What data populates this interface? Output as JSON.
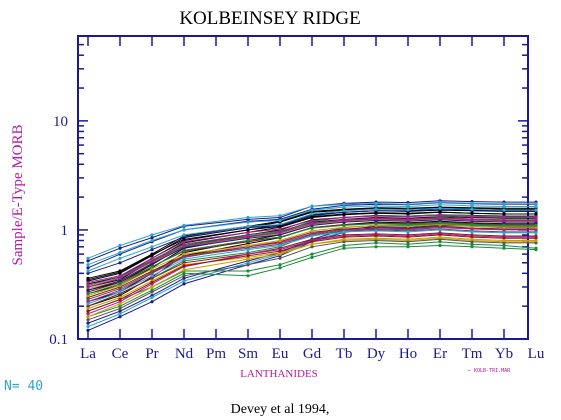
{
  "chart_data": {
    "type": "line",
    "title": "KOLBEINSEY RIDGE",
    "ylabel": "Sample/E-Type MORB",
    "xlabel": "LANTHANIDES",
    "yscale": "log",
    "ylim": [
      0.1,
      60
    ],
    "yticks": [
      {
        "value": 0.1,
        "label": "0.1"
      },
      {
        "value": 1,
        "label": "1"
      },
      {
        "value": 10,
        "label": "10"
      }
    ],
    "categories": [
      "La",
      "Ce",
      "Pr",
      "Nd",
      "Pm",
      "Sm",
      "Eu",
      "Gd",
      "Tb",
      "Dy",
      "Ho",
      "Er",
      "Tm",
      "Yb",
      "Lu"
    ],
    "legend_note": "← KOLB-TRI.MAR",
    "count_label": "N= 40",
    "footer": "Devey et al 1994,",
    "colors": {
      "axis": "#1a1a8c",
      "title": "#000000",
      "ylabel": "#b5179e",
      "xlabel": "#b5179e",
      "count": "#2ea6c8"
    },
    "series": [
      {
        "color": "#000000",
        "values": [
          0.34,
          0.4,
          0.58,
          0.85,
          null,
          1.05,
          1.18,
          1.45,
          1.52,
          1.58,
          1.55,
          1.6,
          1.58,
          1.55,
          1.55
        ]
      },
      {
        "color": "#000000",
        "values": [
          0.32,
          0.37,
          0.55,
          0.8,
          null,
          1.0,
          1.12,
          1.38,
          1.45,
          1.5,
          1.48,
          1.52,
          1.5,
          1.48,
          1.48
        ]
      },
      {
        "color": "#000000",
        "values": [
          0.3,
          0.35,
          0.52,
          0.76,
          null,
          0.95,
          1.06,
          1.3,
          1.38,
          1.42,
          1.4,
          1.45,
          1.42,
          1.4,
          1.4
        ]
      },
      {
        "color": "#000000",
        "values": [
          0.28,
          0.33,
          0.48,
          0.72,
          null,
          0.9,
          1.0,
          1.24,
          1.3,
          1.36,
          1.34,
          1.38,
          1.36,
          1.34,
          1.34
        ]
      },
      {
        "color": "#000000",
        "values": [
          0.26,
          0.31,
          0.45,
          0.68,
          null,
          0.86,
          0.96,
          1.18,
          1.25,
          1.3,
          1.28,
          1.32,
          1.3,
          1.28,
          1.28
        ]
      },
      {
        "color": "#000000",
        "values": [
          0.22,
          0.27,
          0.4,
          0.62,
          null,
          0.8,
          0.9,
          1.12,
          1.2,
          1.25,
          1.22,
          1.26,
          1.22,
          1.2,
          1.2
        ]
      },
      {
        "color": "#000000",
        "values": [
          0.2,
          0.25,
          0.37,
          0.58,
          null,
          0.75,
          0.85,
          1.05,
          1.12,
          1.18,
          1.16,
          1.2,
          1.16,
          1.14,
          1.14
        ]
      },
      {
        "color": "#000000",
        "values": [
          0.36,
          0.42,
          0.6,
          0.88,
          null,
          1.08,
          1.2,
          1.48,
          1.55,
          1.6,
          1.58,
          1.62,
          1.6,
          1.58,
          1.58
        ]
      },
      {
        "color": "#1a1a8c",
        "values": [
          0.52,
          0.68,
          0.85,
          1.08,
          null,
          1.25,
          1.3,
          1.65,
          1.75,
          1.8,
          1.78,
          1.85,
          1.82,
          1.8,
          1.8
        ]
      },
      {
        "color": "#1a1a8c",
        "values": [
          0.45,
          0.6,
          0.78,
          1.0,
          null,
          1.2,
          1.25,
          1.55,
          1.68,
          1.72,
          1.7,
          1.78,
          1.74,
          1.72,
          1.72
        ]
      },
      {
        "color": "#1a1a8c",
        "values": [
          0.4,
          0.5,
          0.66,
          0.86,
          null,
          1.05,
          1.1,
          1.35,
          1.45,
          1.5,
          1.5,
          1.56,
          1.52,
          1.5,
          1.5
        ]
      },
      {
        "color": "#1a1a8c",
        "values": [
          0.12,
          0.16,
          0.22,
          0.32,
          null,
          0.48,
          0.58,
          0.78,
          0.95,
          1.05,
          1.05,
          1.1,
          1.08,
          1.05,
          1.05
        ]
      },
      {
        "color": "#1a1a8c",
        "values": [
          0.14,
          0.18,
          0.25,
          0.36,
          null,
          0.52,
          0.62,
          0.82,
          1.0,
          1.08,
          1.08,
          1.12,
          1.1,
          1.08,
          1.08
        ]
      },
      {
        "color": "#2ea6c8",
        "values": [
          0.55,
          0.72,
          0.9,
          1.1,
          null,
          1.3,
          1.35,
          1.65,
          1.72,
          1.75,
          1.72,
          1.8,
          1.76,
          1.74,
          1.74
        ]
      },
      {
        "color": "#2ea6c8",
        "values": [
          0.48,
          0.62,
          0.8,
          1.0,
          null,
          1.18,
          1.22,
          1.52,
          1.62,
          1.66,
          1.64,
          1.7,
          1.66,
          1.64,
          1.64
        ]
      },
      {
        "color": "#2ea6c8",
        "values": [
          0.42,
          0.55,
          0.7,
          0.9,
          null,
          1.08,
          1.12,
          1.4,
          1.5,
          1.55,
          1.53,
          1.58,
          1.55,
          1.52,
          1.52
        ]
      },
      {
        "color": "#2ea6c8",
        "values": [
          0.13,
          0.17,
          0.24,
          0.34,
          null,
          0.5,
          0.6,
          0.8,
          0.96,
          1.02,
          1.02,
          1.06,
          1.04,
          1.02,
          1.02
        ]
      },
      {
        "color": "#1a8c3a",
        "values": [
          0.18,
          0.23,
          0.3,
          0.42,
          null,
          0.42,
          0.48,
          0.6,
          0.72,
          0.76,
          0.74,
          0.78,
          0.74,
          0.72,
          0.68
        ]
      },
      {
        "color": "#1a8c3a",
        "values": [
          0.16,
          0.2,
          0.28,
          0.4,
          null,
          0.38,
          0.45,
          0.56,
          0.68,
          0.7,
          0.7,
          0.72,
          0.7,
          0.68,
          0.66
        ]
      },
      {
        "color": "#1a8c3a",
        "values": [
          0.2,
          0.26,
          0.36,
          0.52,
          null,
          0.62,
          0.7,
          0.92,
          1.05,
          1.1,
          1.1,
          1.14,
          1.1,
          1.08,
          1.08
        ]
      },
      {
        "color": "#1a8c3a",
        "values": [
          0.3,
          0.36,
          0.52,
          0.72,
          null,
          0.88,
          0.96,
          1.2,
          1.3,
          1.35,
          1.34,
          1.38,
          1.35,
          1.32,
          1.32
        ]
      },
      {
        "color": "#8b1a1a",
        "values": [
          0.2,
          0.26,
          0.36,
          0.5,
          null,
          0.6,
          0.68,
          0.82,
          0.9,
          0.92,
          0.9,
          0.94,
          0.9,
          0.88,
          0.88
        ]
      },
      {
        "color": "#8b1a1a",
        "values": [
          0.24,
          0.3,
          0.42,
          0.58,
          null,
          0.7,
          0.78,
          0.95,
          1.02,
          1.05,
          1.03,
          1.08,
          1.04,
          1.02,
          1.02
        ]
      },
      {
        "color": "#8b1a1a",
        "values": [
          0.27,
          0.33,
          0.46,
          0.64,
          null,
          0.78,
          0.86,
          1.05,
          1.12,
          1.15,
          1.14,
          1.18,
          1.14,
          1.12,
          1.12
        ]
      },
      {
        "color": "#b5179e",
        "values": [
          0.17,
          0.22,
          0.32,
          0.46,
          null,
          0.6,
          0.66,
          0.8,
          0.88,
          0.9,
          0.88,
          0.92,
          0.88,
          0.86,
          0.86
        ]
      },
      {
        "color": "#b5179e",
        "values": [
          0.22,
          0.28,
          0.4,
          0.56,
          null,
          0.7,
          0.76,
          0.92,
          1.0,
          1.02,
          1.0,
          1.05,
          1.02,
          1.0,
          1.0
        ]
      },
      {
        "color": "#b5179e",
        "values": [
          0.33,
          0.38,
          0.55,
          0.78,
          null,
          0.95,
          1.02,
          1.22,
          1.3,
          1.34,
          1.32,
          1.36,
          1.32,
          1.3,
          1.3
        ]
      },
      {
        "color": "#c8a000",
        "values": [
          0.19,
          0.24,
          0.34,
          0.48,
          null,
          0.56,
          0.62,
          0.74,
          0.8,
          0.82,
          0.8,
          0.84,
          0.8,
          0.78,
          0.78
        ]
      },
      {
        "color": "#c8a000",
        "values": [
          0.25,
          0.31,
          0.44,
          0.6,
          null,
          0.72,
          0.8,
          0.98,
          1.06,
          1.1,
          1.08,
          1.12,
          1.08,
          1.06,
          1.06
        ]
      },
      {
        "color": "#c8a000",
        "values": [
          0.29,
          0.34,
          0.5,
          0.7,
          null,
          0.85,
          0.92,
          1.12,
          1.2,
          1.24,
          1.22,
          1.26,
          1.22,
          1.2,
          1.2
        ]
      },
      {
        "color": "#555555",
        "values": [
          0.15,
          0.19,
          0.27,
          0.38,
          null,
          0.48,
          0.55,
          0.7,
          0.78,
          0.8,
          0.78,
          0.82,
          0.78,
          0.76,
          0.76
        ]
      },
      {
        "color": "#555555",
        "values": [
          0.23,
          0.29,
          0.41,
          0.57,
          null,
          0.68,
          0.74,
          0.9,
          0.98,
          1.0,
          0.98,
          1.02,
          0.98,
          0.96,
          0.96
        ]
      },
      {
        "color": "#555555",
        "values": [
          0.31,
          0.37,
          0.53,
          0.74,
          null,
          0.9,
          0.98,
          1.16,
          1.24,
          1.28,
          1.26,
          1.3,
          1.26,
          1.24,
          1.24
        ]
      },
      {
        "color": "#2ea6c8",
        "values": [
          0.21,
          0.27,
          0.38,
          0.54,
          null,
          0.66,
          0.72,
          0.88,
          0.96,
          0.98,
          0.96,
          1.0,
          0.96,
          0.94,
          0.94
        ]
      },
      {
        "color": "#1a1a8c",
        "values": [
          0.28,
          0.34,
          0.49,
          0.69,
          null,
          0.84,
          0.9,
          1.1,
          1.18,
          1.22,
          1.2,
          1.24,
          1.2,
          1.18,
          1.18
        ]
      },
      {
        "color": "#000000",
        "values": [
          0.35,
          0.41,
          0.59,
          0.82,
          null,
          1.0,
          1.08,
          1.32,
          1.4,
          1.44,
          1.42,
          1.46,
          1.42,
          1.4,
          1.4
        ]
      },
      {
        "color": "#1a8c3a",
        "values": [
          0.26,
          0.32,
          0.46,
          0.65,
          null,
          0.8,
          0.86,
          1.04,
          1.1,
          1.14,
          1.12,
          1.16,
          1.12,
          1.1,
          1.1
        ]
      },
      {
        "color": "#8b1a1a",
        "values": [
          0.18,
          0.23,
          0.33,
          0.47,
          null,
          0.58,
          0.64,
          0.78,
          0.86,
          0.88,
          0.86,
          0.9,
          0.86,
          0.84,
          0.84
        ]
      },
      {
        "color": "#b5179e",
        "values": [
          0.3,
          0.36,
          0.51,
          0.71,
          null,
          0.87,
          0.94,
          1.14,
          1.22,
          1.26,
          1.24,
          1.28,
          1.24,
          1.22,
          1.22
        ]
      },
      {
        "color": "#c8a000",
        "values": [
          0.16,
          0.21,
          0.3,
          0.43,
          null,
          0.54,
          0.6,
          0.74,
          0.82,
          0.84,
          0.82,
          0.86,
          0.82,
          0.8,
          0.8
        ]
      }
    ]
  }
}
